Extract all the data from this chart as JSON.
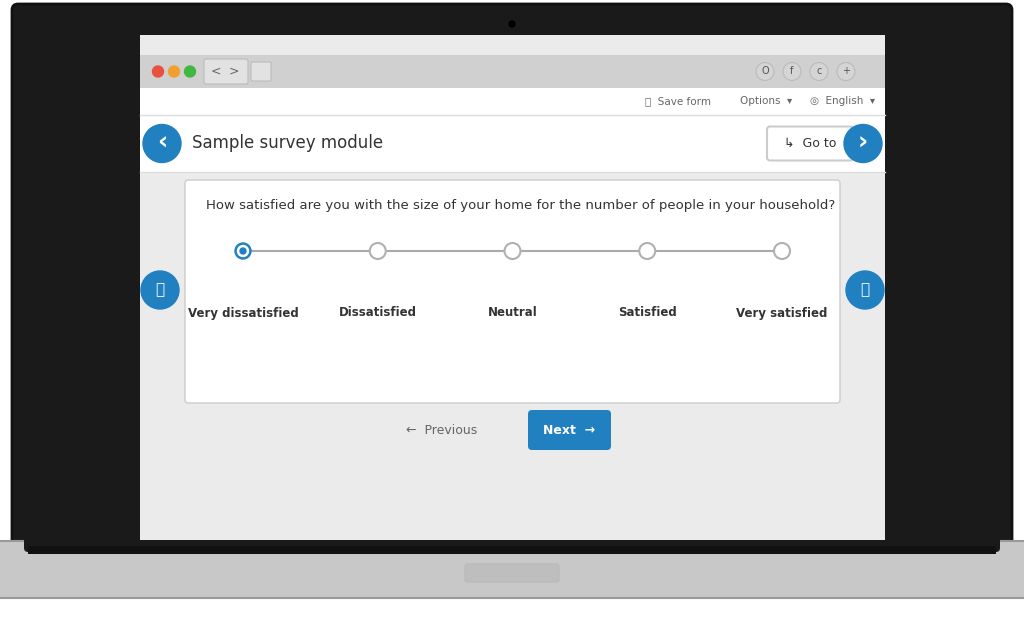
{
  "bg_color": "#ffffff",
  "laptop_outer": "#1a1a1a",
  "laptop_inner_bezel": "#2d2d2d",
  "laptop_screen_bg": "#e8e8e8",
  "browser_bar_color": "#d0d0d0",
  "browser_content_bg": "#ebebeb",
  "nav2_bg": "#ffffff",
  "white": "#ffffff",
  "blue_btn": "#2080c0",
  "text_dark": "#333333",
  "text_medium": "#666666",
  "border_color": "#cccccc",
  "red_dot": "#e85040",
  "yellow_dot": "#f0a030",
  "green_dot": "#40b840",
  "line_color": "#aaaaaa",
  "base_color": "#c8c8c8",
  "base_edge": "#b0b0b0",
  "survey_title": "Sample survey module",
  "question": "How satisfied are you with the size of your home for the number of people in your household?",
  "options": [
    "Very dissatisfied",
    "Dissatisfied",
    "Neutral",
    "Satisfied",
    "Very satisfied"
  ],
  "selected_index": 0,
  "go_to_text": "Go to",
  "previous_text": "Previous",
  "next_text": "Next",
  "save_form": "Save form",
  "options_text": "Options",
  "english_text": "English"
}
